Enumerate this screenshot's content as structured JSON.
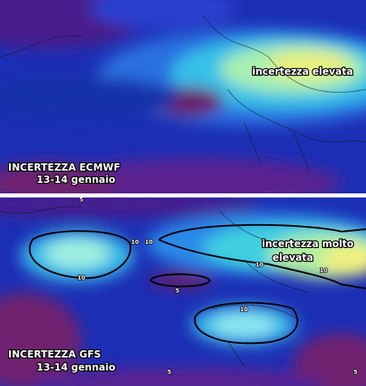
{
  "panels": [
    {
      "title": "INCERTEZZA ECMWF",
      "subtitle": "13-14 gennaio",
      "annotation": [
        "incertezza elevata"
      ],
      "contour_labels": []
    },
    {
      "title": "INCERTEZZA GFS",
      "subtitle": "13-14 gennaio",
      "annotation": [
        "incertezza molto",
        "elevata"
      ],
      "contour_labels": [
        5,
        10,
        10,
        10,
        10,
        10,
        5,
        10,
        5,
        5
      ]
    }
  ]
}
